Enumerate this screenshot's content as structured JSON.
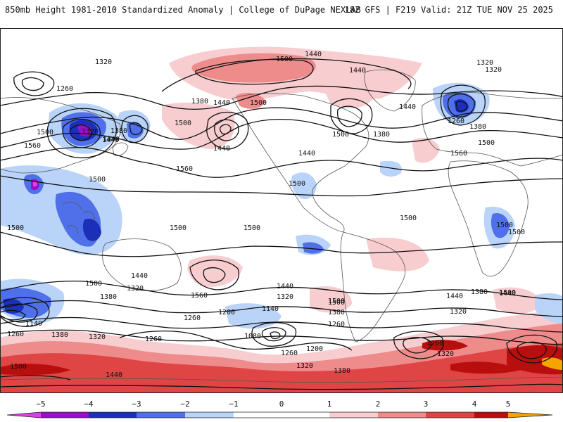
{
  "header": {
    "title": "850mb Height 1981-2010 Standardized Anomaly | College of DuPage NEXLAB",
    "run_info": "18Z GFS | F219 Valid: 21Z TUE NOV 25 2025"
  },
  "colors": {
    "neg5": "#e040e0",
    "neg4": "#9a10c8",
    "neg3": "#1c2fb8",
    "neg2": "#4f70e8",
    "neg1": "#b9d4f8",
    "zero": "#ffffff",
    "pos1": "#f8cdd0",
    "pos2": "#ee8c8c",
    "pos3": "#e04545",
    "pos4": "#b80e0e",
    "pos5": "#f5a400",
    "contour": "#111111",
    "border": "#555555"
  },
  "colorbar": {
    "ticks": [
      "−5",
      "−4",
      "−3",
      "−2",
      "−1",
      "0",
      "1",
      "2",
      "3",
      "4",
      "5"
    ]
  },
  "contour_labels": [
    "1320",
    "1260",
    "1500",
    "1440",
    "1380",
    "1560",
    "1200",
    "1140",
    "1080"
  ],
  "map_labels": [
    {
      "id": "l01",
      "text": "1320"
    },
    {
      "id": "l02",
      "text": "1260"
    },
    {
      "id": "l03",
      "text": "1500"
    },
    {
      "id": "l04",
      "text": "1440"
    },
    {
      "id": "l05",
      "text": "1380"
    },
    {
      "id": "l06",
      "text": "1320"
    },
    {
      "id": "l07",
      "text": "1440"
    },
    {
      "id": "l08",
      "text": "1560"
    },
    {
      "id": "l09",
      "text": "1380"
    },
    {
      "id": "l10",
      "text": "1440"
    },
    {
      "id": "l11",
      "text": "1500"
    },
    {
      "id": "l12",
      "text": "1440"
    },
    {
      "id": "l13",
      "text": "1560"
    },
    {
      "id": "l14",
      "text": "1500"
    },
    {
      "id": "l15",
      "text": "1440"
    },
    {
      "id": "l16",
      "text": "1500"
    },
    {
      "id": "l17",
      "text": "1440"
    },
    {
      "id": "l18",
      "text": "1500"
    },
    {
      "id": "l19",
      "text": "1380"
    },
    {
      "id": "l20",
      "text": "1440"
    },
    {
      "id": "l21",
      "text": "1500"
    },
    {
      "id": "l22",
      "text": "1440"
    },
    {
      "id": "l23",
      "text": "1320"
    },
    {
      "id": "l24",
      "text": "1320"
    },
    {
      "id": "l25",
      "text": "1260"
    },
    {
      "id": "l26",
      "text": "1380"
    },
    {
      "id": "l27",
      "text": "1500"
    },
    {
      "id": "l28",
      "text": "1560"
    },
    {
      "id": "l29",
      "text": "1500"
    },
    {
      "id": "l30",
      "text": "1500"
    },
    {
      "id": "l31",
      "text": "1500"
    },
    {
      "id": "l32",
      "text": "1500"
    },
    {
      "id": "l33",
      "text": "1500"
    },
    {
      "id": "l34",
      "text": "1500"
    },
    {
      "id": "l35",
      "text": "1500"
    },
    {
      "id": "l36",
      "text": "1500"
    },
    {
      "id": "l37",
      "text": "1440"
    },
    {
      "id": "l38",
      "text": "1500"
    },
    {
      "id": "l39",
      "text": "1320"
    },
    {
      "id": "l40",
      "text": "1380"
    },
    {
      "id": "l41",
      "text": "1560"
    },
    {
      "id": "l42",
      "text": "1200"
    },
    {
      "id": "l43",
      "text": "1260"
    },
    {
      "id": "l44",
      "text": "1140"
    },
    {
      "id": "l45",
      "text": "1320"
    },
    {
      "id": "l46",
      "text": "1440"
    },
    {
      "id": "l47",
      "text": "1380"
    },
    {
      "id": "l48",
      "text": "1500"
    },
    {
      "id": "l49",
      "text": "1260"
    },
    {
      "id": "l50",
      "text": "1080"
    },
    {
      "id": "l51",
      "text": "1200"
    },
    {
      "id": "l52",
      "text": "1260"
    },
    {
      "id": "l53",
      "text": "1320"
    },
    {
      "id": "l54",
      "text": "1380"
    },
    {
      "id": "l55",
      "text": "1440"
    },
    {
      "id": "l56",
      "text": "1380"
    },
    {
      "id": "l57",
      "text": "1440"
    },
    {
      "id": "l58",
      "text": "1500"
    },
    {
      "id": "l59",
      "text": "1320"
    },
    {
      "id": "l60",
      "text": "1260"
    },
    {
      "id": "l61",
      "text": "1320"
    },
    {
      "id": "l62",
      "text": "1140"
    },
    {
      "id": "l63",
      "text": "1260"
    },
    {
      "id": "l64",
      "text": "1380"
    },
    {
      "id": "l65",
      "text": "1320"
    },
    {
      "id": "l66",
      "text": "1260"
    },
    {
      "id": "l67",
      "text": "1500"
    },
    {
      "id": "l68",
      "text": "1440"
    }
  ]
}
